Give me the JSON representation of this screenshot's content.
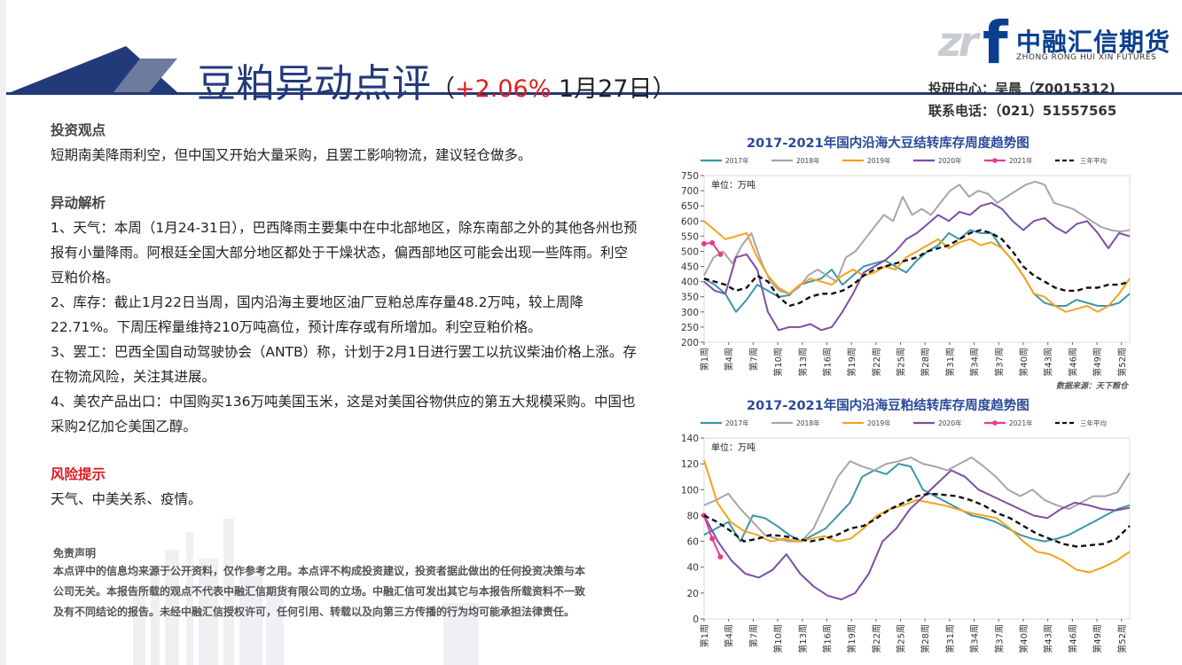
{
  "header": {
    "title": "豆粕异动点评",
    "subtitle_open": "（",
    "subtitle_pct": "+2.06%",
    "subtitle_date": " 1月27日）",
    "accent_color": "#233a7a",
    "change_color": "#e01f1f"
  },
  "logo": {
    "mark": "zr",
    "mark_f": "f",
    "cn_name": "中融汇信期货",
    "en_name": "ZHONG RONG HUI XIN FUTURES",
    "color": "#0a3f8f"
  },
  "contact": {
    "center": "投研中心：吴晨（Z0015312)",
    "phone": "联系电话：（021）51557565"
  },
  "view": {
    "heading": "投资观点",
    "text": "短期南美降雨利空，但中国又开始大量采购，且罢工影响物流，建议轻仓做多。"
  },
  "analysis": {
    "heading": "异动解析",
    "items": [
      "1、天气：本周（1月24-31日），巴西降雨主要集中在中北部地区，除东南部之外的其他各州也预报有小量降雨。阿根廷全国大部分地区都处于干燥状态，偏西部地区可能会出现一些阵雨。利空豆粕价格。",
      "2、库存：截止1月22日当周，国内沿海主要地区油厂豆粕总库存量48.2万吨，较上周降22.71%。下周压榨量维持210万吨高位，预计库存或有所增加。利空豆粕价格。",
      "3、罢工：巴西全国自动驾驶协会（ANTB）称，计划于2月1日进行罢工以抗议柴油价格上涨。存在物流风险，关注其进展。",
      "4、美农产品出口：中国购买136万吨美国玉米，这是对美国谷物供应的第五大规模采购。中国也采购2亿加仑美国乙醇。"
    ]
  },
  "risk": {
    "heading": "风险提示",
    "text": "天气、中美关系、疫情。"
  },
  "disclaimer": {
    "heading": "免责声明",
    "text": "本点评中的信息均来源于公开资料，仅作参考之用。本点评不构成投资建议，投资者据此做出的任何投资决策与本公司无关。本报告所载的观点不代表中融汇信期货有限公司的立场。中融汇信可发出其它与本报告所载资料不一致及有不同结论的报告。未经中融汇信授权许可，任何引用、转载以及向第三方传播的行为均可能承担法律责任。"
  },
  "chart_data": [
    {
      "type": "line",
      "title": "2017-2021年国内沿海大豆结转库存周度趋势图",
      "unit_label": "单位：万吨",
      "source": "数据来源：天下粮仓",
      "ylim": [
        200,
        750
      ],
      "yticks": [
        200,
        250,
        300,
        350,
        400,
        450,
        500,
        550,
        600,
        650,
        700,
        750
      ],
      "x_ticks": [
        "第1周",
        "第4周",
        "第7周",
        "第10周",
        "第13周",
        "第16周",
        "第19周",
        "第22周",
        "第25周",
        "第28周",
        "第31周",
        "第34周",
        "第37周",
        "第40周",
        "第43周",
        "第46周",
        "第49周",
        "第52周"
      ],
      "series": [
        {
          "name": "2017年",
          "color": "#3a97a8",
          "values": [
            410,
            390,
            360,
            300,
            340,
            390,
            370,
            350,
            355,
            390,
            400,
            410,
            440,
            390,
            420,
            450,
            460,
            470,
            450,
            430,
            470,
            500,
            520,
            560,
            540,
            570,
            560,
            560,
            510,
            470,
            420,
            360,
            330,
            320,
            320,
            340,
            330,
            320,
            320,
            330,
            360
          ]
        },
        {
          "name": "2018年",
          "color": "#a6a6a6",
          "values": [
            420,
            480,
            500,
            460,
            520,
            560,
            470,
            400,
            370,
            360,
            380,
            420,
            440,
            420,
            400,
            480,
            500,
            540,
            580,
            620,
            600,
            680,
            620,
            640,
            620,
            660,
            700,
            720,
            680,
            700,
            690,
            660,
            680,
            700,
            720,
            730,
            720,
            660,
            650,
            640,
            620,
            600,
            580,
            570,
            565,
            570
          ]
        },
        {
          "name": "2019年",
          "color": "#f5a21c",
          "values": [
            600,
            570,
            540,
            550,
            560,
            480,
            420,
            380,
            360,
            390,
            410,
            400,
            390,
            420,
            440,
            420,
            430,
            450,
            440,
            480,
            500,
            520,
            540,
            510,
            530,
            540,
            520,
            530,
            510,
            470,
            420,
            360,
            350,
            320,
            300,
            310,
            320,
            300,
            320,
            360,
            410
          ]
        },
        {
          "name": "2020年",
          "color": "#7e4ea3",
          "values": [
            400,
            370,
            360,
            480,
            490,
            440,
            300,
            240,
            250,
            250,
            260,
            240,
            250,
            300,
            360,
            430,
            450,
            470,
            500,
            540,
            560,
            590,
            620,
            600,
            630,
            620,
            650,
            660,
            640,
            600,
            570,
            600,
            610,
            580,
            560,
            590,
            600,
            560,
            510,
            560,
            550
          ]
        },
        {
          "name": "2021年",
          "color": "#e53d8e",
          "values": [
            525,
            528,
            490
          ]
        },
        {
          "name": "三年平均",
          "color": "#111111",
          "dashed": true,
          "values": [
            410,
            400,
            390,
            370,
            380,
            420,
            400,
            350,
            320,
            330,
            350,
            360,
            360,
            370,
            390,
            420,
            440,
            450,
            460,
            470,
            480,
            500,
            510,
            520,
            540,
            560,
            570,
            560,
            540,
            500,
            450,
            420,
            400,
            380,
            370,
            370,
            380,
            380,
            390,
            390,
            400
          ]
        }
      ]
    },
    {
      "type": "line",
      "title": "2017-2021年国内沿海豆粕结转库存周度趋势图",
      "unit_label": "单位：万吨",
      "ylim": [
        0,
        140
      ],
      "yticks": [
        0,
        20,
        40,
        60,
        80,
        100,
        120,
        140
      ],
      "x_ticks": [
        "第1周",
        "第4周",
        "第7周",
        "第10周",
        "第13周",
        "第16周",
        "第19周",
        "第22周",
        "第25周",
        "第28周",
        "第31周",
        "第34周",
        "第37周",
        "第40周",
        "第43周",
        "第46周",
        "第49周",
        "第52周"
      ],
      "series": [
        {
          "name": "2017年",
          "color": "#3a97a8",
          "values": [
            65,
            70,
            75,
            60,
            80,
            78,
            72,
            65,
            60,
            65,
            70,
            80,
            90,
            110,
            115,
            112,
            120,
            118,
            100,
            95,
            90,
            85,
            80,
            78,
            75,
            70,
            65,
            62,
            60,
            62,
            65,
            70,
            75,
            80,
            85,
            88
          ]
        },
        {
          "name": "2018年",
          "color": "#a6a6a6",
          "values": [
            88,
            92,
            97,
            85,
            75,
            65,
            62,
            60,
            60,
            70,
            90,
            110,
            122,
            118,
            115,
            120,
            122,
            125,
            120,
            118,
            115,
            120,
            125,
            118,
            110,
            100,
            95,
            100,
            92,
            88,
            85,
            90,
            95,
            95,
            98,
            113
          ]
        },
        {
          "name": "2019年",
          "color": "#f5a21c",
          "values": [
            123,
            90,
            75,
            68,
            65,
            60,
            62,
            60,
            62,
            64,
            60,
            62,
            70,
            80,
            85,
            88,
            92,
            90,
            88,
            85,
            82,
            80,
            78,
            70,
            60,
            52,
            50,
            45,
            38,
            36,
            40,
            45,
            52
          ]
        },
        {
          "name": "2020年",
          "color": "#7e4ea3",
          "values": [
            80,
            60,
            45,
            35,
            32,
            38,
            50,
            35,
            25,
            18,
            15,
            20,
            35,
            60,
            70,
            85,
            95,
            105,
            115,
            110,
            100,
            95,
            90,
            85,
            80,
            78,
            85,
            90,
            88,
            85,
            84,
            86
          ]
        },
        {
          "name": "2021年",
          "color": "#e53d8e",
          "values": [
            80,
            62,
            48
          ]
        },
        {
          "name": "三年平均",
          "color": "#111111",
          "dashed": true,
          "values": [
            80,
            75,
            68,
            60,
            62,
            65,
            64,
            62,
            60,
            62,
            65,
            70,
            72,
            78,
            85,
            90,
            95,
            97,
            96,
            95,
            92,
            88,
            82,
            78,
            72,
            66,
            62,
            58,
            56,
            57,
            58,
            62,
            72
          ]
        }
      ]
    }
  ]
}
